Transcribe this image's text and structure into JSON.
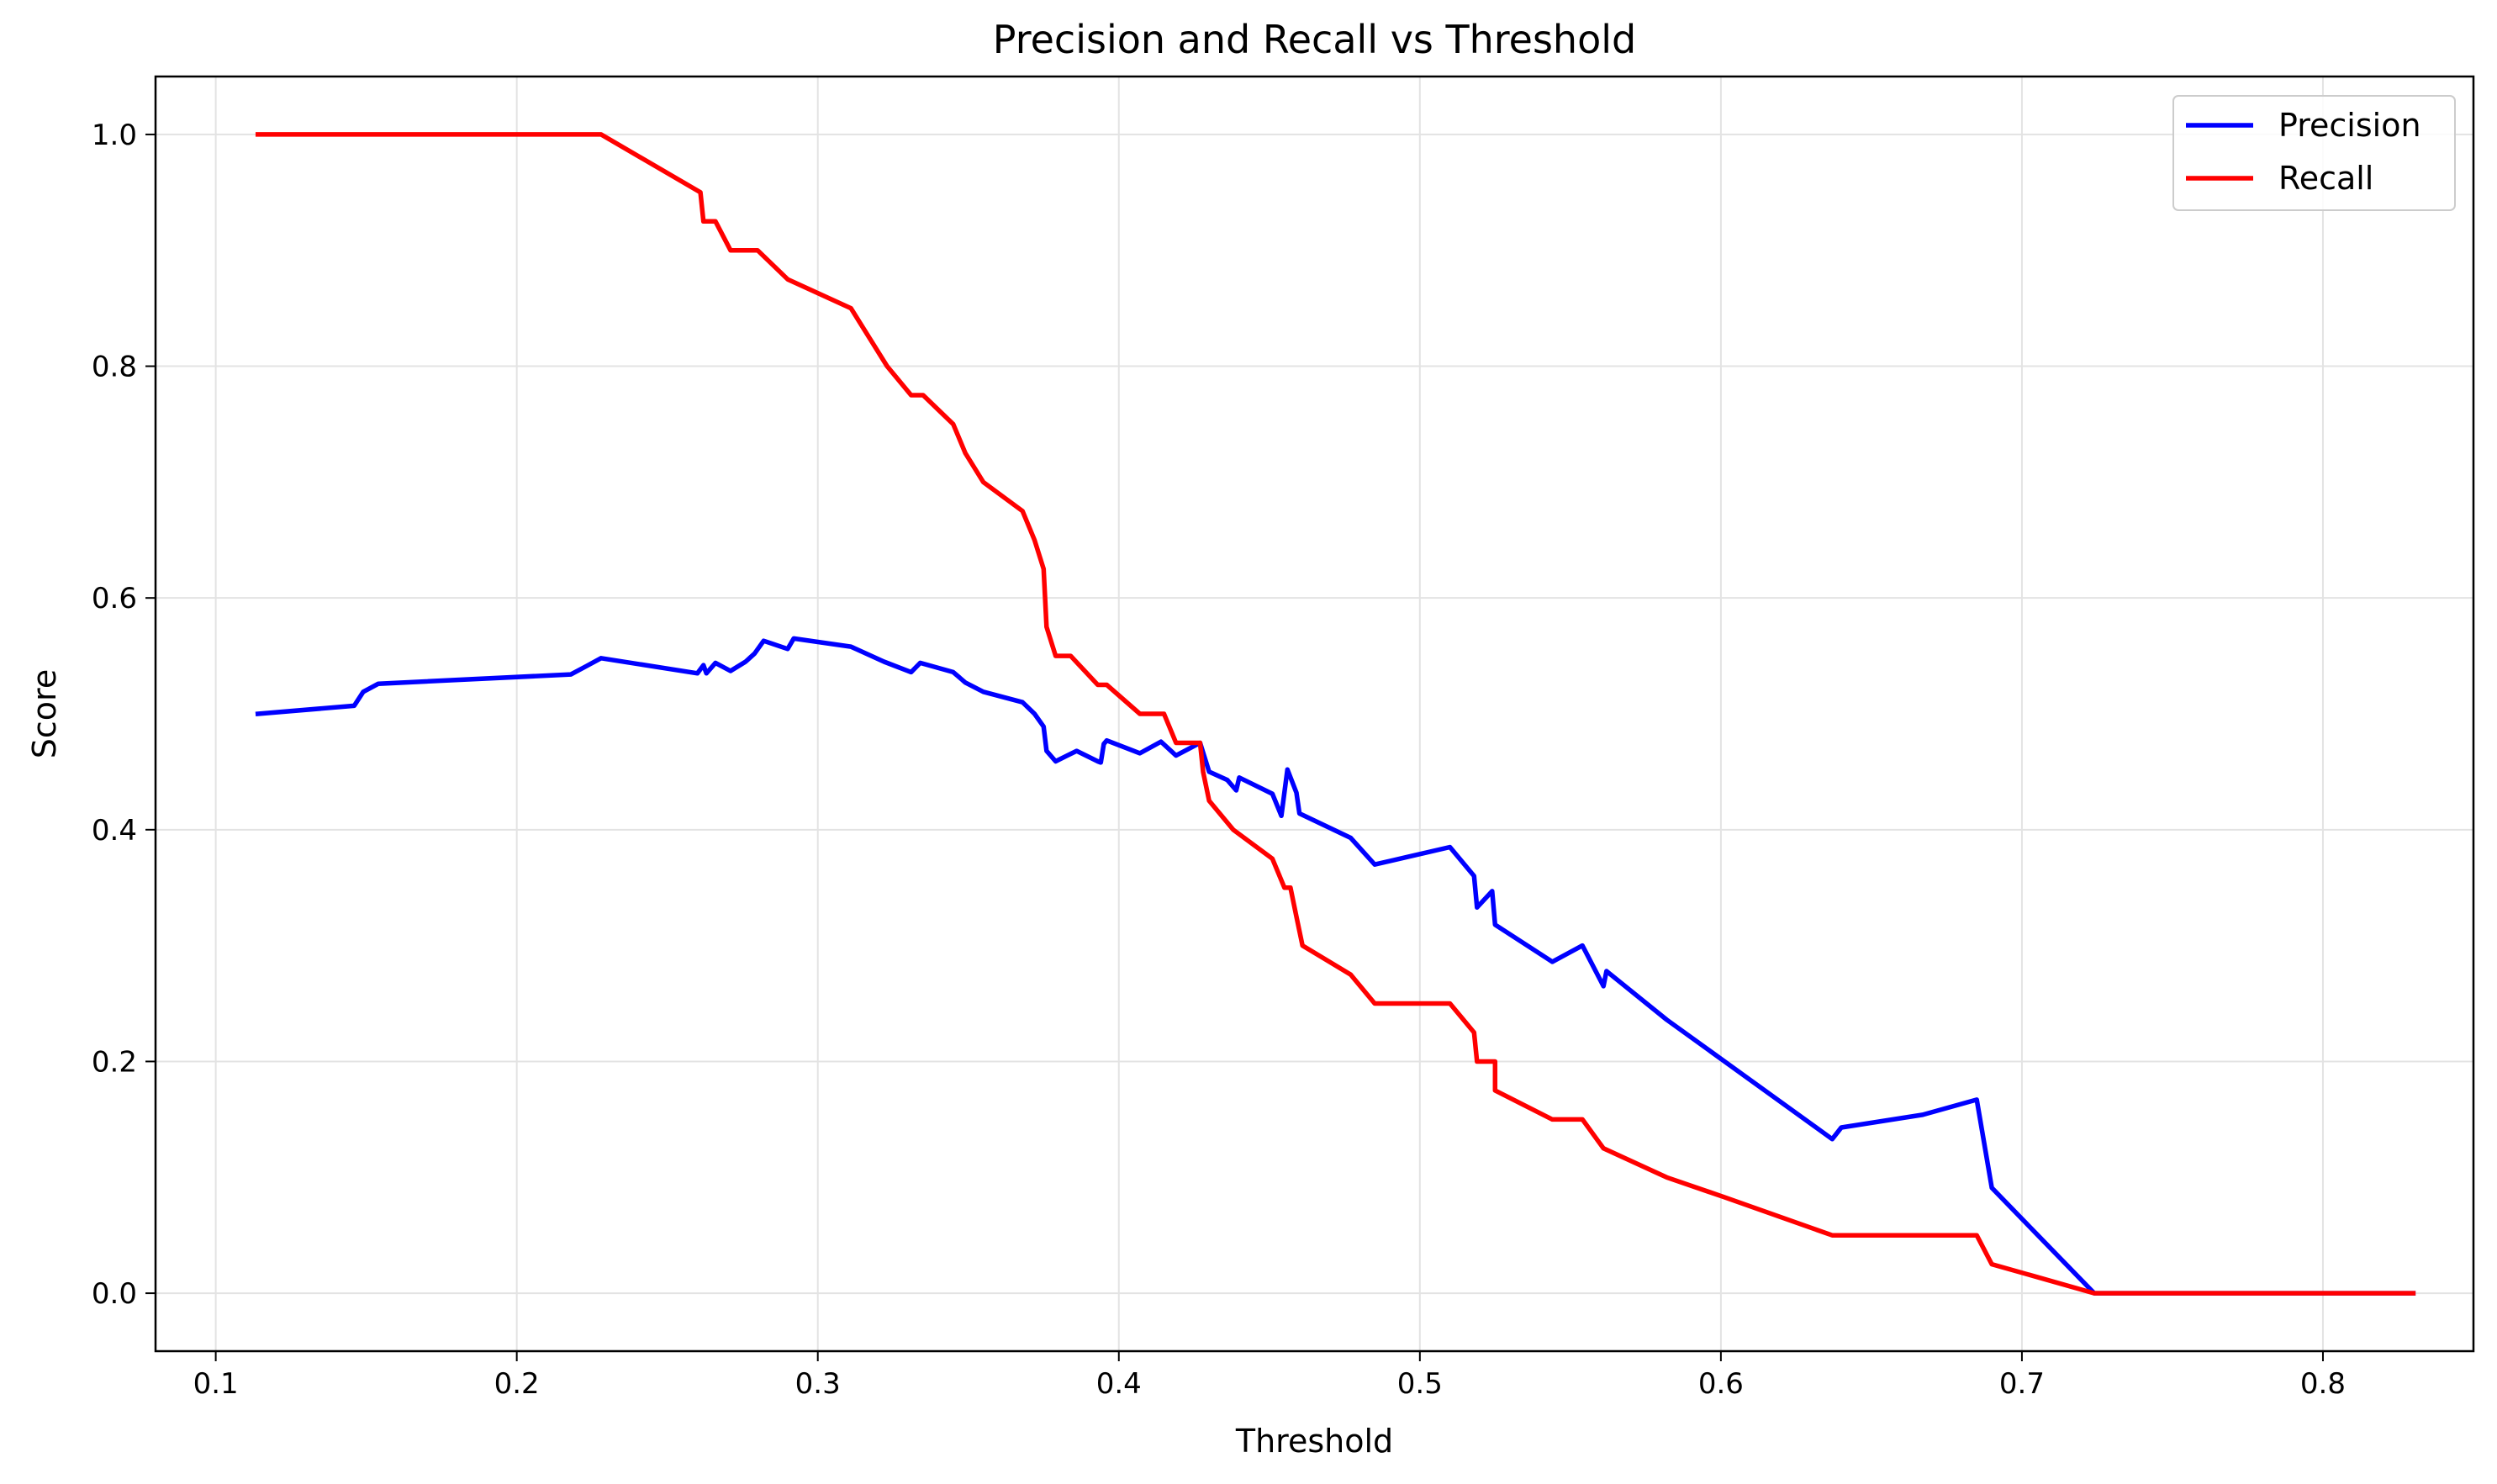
{
  "chart_data": {
    "type": "line",
    "title": "Precision and Recall vs Threshold",
    "xlabel": "Threshold",
    "ylabel": "Score",
    "xlim": [
      0.08,
      0.85
    ],
    "ylim": [
      -0.05,
      1.05
    ],
    "xticks": [
      0.1,
      0.2,
      0.3,
      0.4,
      0.5,
      0.6,
      0.7,
      0.8
    ],
    "xtick_labels": [
      "0.1",
      "0.2",
      "0.3",
      "0.4",
      "0.5",
      "0.6",
      "0.7",
      "0.8"
    ],
    "yticks": [
      0.0,
      0.2,
      0.4,
      0.6,
      0.8,
      1.0
    ],
    "ytick_labels": [
      "0.0",
      "0.2",
      "0.4",
      "0.6",
      "0.8",
      "1.0"
    ],
    "grid": true,
    "legend_position": "top-right",
    "series": [
      {
        "name": "Precision",
        "color": "#0000ff",
        "points": [
          [
            0.114,
            0.5
          ],
          [
            0.146,
            0.507
          ],
          [
            0.149,
            0.519
          ],
          [
            0.154,
            0.526
          ],
          [
            0.218,
            0.534
          ],
          [
            0.223,
            0.541
          ],
          [
            0.228,
            0.548
          ],
          [
            0.26,
            0.535
          ],
          [
            0.262,
            0.542
          ],
          [
            0.263,
            0.535
          ],
          [
            0.266,
            0.544
          ],
          [
            0.271,
            0.537
          ],
          [
            0.276,
            0.545
          ],
          [
            0.279,
            0.552
          ],
          [
            0.282,
            0.563
          ],
          [
            0.29,
            0.556
          ],
          [
            0.292,
            0.565
          ],
          [
            0.311,
            0.558
          ],
          [
            0.322,
            0.545
          ],
          [
            0.331,
            0.536
          ],
          [
            0.334,
            0.544
          ],
          [
            0.345,
            0.536
          ],
          [
            0.349,
            0.527
          ],
          [
            0.355,
            0.519
          ],
          [
            0.368,
            0.51
          ],
          [
            0.372,
            0.5
          ],
          [
            0.375,
            0.489
          ],
          [
            0.376,
            0.468
          ],
          [
            0.379,
            0.459
          ],
          [
            0.386,
            0.468
          ],
          [
            0.393,
            0.459
          ],
          [
            0.394,
            0.458
          ],
          [
            0.395,
            0.474
          ],
          [
            0.396,
            0.477
          ],
          [
            0.407,
            0.466
          ],
          [
            0.414,
            0.476
          ],
          [
            0.419,
            0.464
          ],
          [
            0.427,
            0.475
          ],
          [
            0.43,
            0.45
          ],
          [
            0.436,
            0.443
          ],
          [
            0.439,
            0.434
          ],
          [
            0.44,
            0.445
          ],
          [
            0.451,
            0.431
          ],
          [
            0.454,
            0.412
          ],
          [
            0.456,
            0.452
          ],
          [
            0.459,
            0.432
          ],
          [
            0.46,
            0.414
          ],
          [
            0.477,
            0.393
          ],
          [
            0.485,
            0.37
          ],
          [
            0.51,
            0.385
          ],
          [
            0.518,
            0.36
          ],
          [
            0.519,
            0.333
          ],
          [
            0.524,
            0.347
          ],
          [
            0.525,
            0.318
          ],
          [
            0.544,
            0.286
          ],
          [
            0.554,
            0.3
          ],
          [
            0.561,
            0.265
          ],
          [
            0.562,
            0.278
          ],
          [
            0.582,
            0.236
          ],
          [
            0.637,
            0.133
          ],
          [
            0.64,
            0.143
          ],
          [
            0.667,
            0.154
          ],
          [
            0.685,
            0.167
          ],
          [
            0.69,
            0.091
          ],
          [
            0.724,
            0.0
          ],
          [
            0.83,
            0.0
          ]
        ]
      },
      {
        "name": "Recall",
        "color": "#ff0000",
        "points": [
          [
            0.114,
            1.0
          ],
          [
            0.228,
            1.0
          ],
          [
            0.261,
            0.95
          ],
          [
            0.262,
            0.925
          ],
          [
            0.266,
            0.925
          ],
          [
            0.271,
            0.9
          ],
          [
            0.28,
            0.9
          ],
          [
            0.29,
            0.875
          ],
          [
            0.311,
            0.85
          ],
          [
            0.317,
            0.825
          ],
          [
            0.323,
            0.8
          ],
          [
            0.331,
            0.775
          ],
          [
            0.335,
            0.775
          ],
          [
            0.345,
            0.75
          ],
          [
            0.349,
            0.725
          ],
          [
            0.355,
            0.7
          ],
          [
            0.368,
            0.675
          ],
          [
            0.372,
            0.65
          ],
          [
            0.375,
            0.625
          ],
          [
            0.376,
            0.575
          ],
          [
            0.379,
            0.55
          ],
          [
            0.384,
            0.55
          ],
          [
            0.393,
            0.525
          ],
          [
            0.396,
            0.525
          ],
          [
            0.407,
            0.5
          ],
          [
            0.415,
            0.5
          ],
          [
            0.419,
            0.475
          ],
          [
            0.427,
            0.475
          ],
          [
            0.428,
            0.45
          ],
          [
            0.43,
            0.425
          ],
          [
            0.438,
            0.4
          ],
          [
            0.451,
            0.375
          ],
          [
            0.455,
            0.35
          ],
          [
            0.457,
            0.35
          ],
          [
            0.459,
            0.325
          ],
          [
            0.461,
            0.3
          ],
          [
            0.477,
            0.275
          ],
          [
            0.485,
            0.25
          ],
          [
            0.51,
            0.25
          ],
          [
            0.518,
            0.225
          ],
          [
            0.519,
            0.2
          ],
          [
            0.525,
            0.2
          ],
          [
            0.525,
            0.175
          ],
          [
            0.544,
            0.15
          ],
          [
            0.554,
            0.15
          ],
          [
            0.561,
            0.125
          ],
          [
            0.582,
            0.1
          ],
          [
            0.601,
            0.083
          ],
          [
            0.637,
            0.05
          ],
          [
            0.685,
            0.05
          ],
          [
            0.69,
            0.025
          ],
          [
            0.724,
            0.0
          ],
          [
            0.83,
            0.0
          ]
        ]
      }
    ]
  }
}
